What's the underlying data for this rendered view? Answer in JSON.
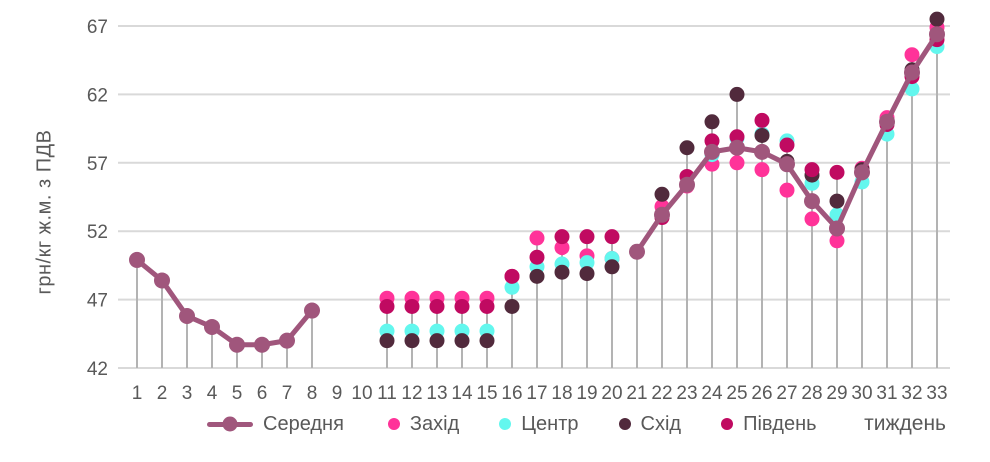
{
  "colors": {
    "grid": "#d9d9d9",
    "dropline": "#b3b3b3",
    "axis_text": "#595959",
    "background": "#ffffff"
  },
  "chart_data": {
    "type": "scatter",
    "title": "",
    "ylabel": "грн/кг ж.м. з ПДВ",
    "xlabel": "тиждень",
    "grid": true,
    "legend_position": "bottom",
    "ylim": [
      42,
      67
    ],
    "y_ticks": [
      42,
      47,
      52,
      57,
      62,
      67
    ],
    "x": [
      1,
      2,
      3,
      4,
      5,
      6,
      7,
      8,
      9,
      10,
      11,
      12,
      13,
      14,
      15,
      16,
      17,
      18,
      19,
      20,
      21,
      22,
      23,
      24,
      25,
      26,
      27,
      28,
      29,
      30,
      31,
      32,
      33
    ],
    "series": [
      {
        "name": "Середня",
        "type": "line",
        "color": "#a0567c",
        "values": [
          49.9,
          48.4,
          45.8,
          45.0,
          43.7,
          43.7,
          44.0,
          46.2,
          null,
          null,
          null,
          null,
          null,
          null,
          null,
          null,
          null,
          null,
          null,
          null,
          50.5,
          53.2,
          55.4,
          57.8,
          58.1,
          57.8,
          56.9,
          54.2,
          52.2,
          56.3,
          60.0,
          63.6,
          66.4
        ]
      },
      {
        "name": "Захід",
        "type": "scatter",
        "color": "#ff3399",
        "values": [
          null,
          null,
          null,
          null,
          null,
          null,
          null,
          null,
          null,
          null,
          47.1,
          47.1,
          47.1,
          47.1,
          47.1,
          48.7,
          51.5,
          50.8,
          50.2,
          50.0,
          null,
          53.8,
          55.3,
          56.9,
          57.0,
          56.5,
          55.0,
          52.9,
          51.3,
          56.6,
          60.3,
          64.9,
          66.9
        ]
      },
      {
        "name": "Центр",
        "type": "scatter",
        "color": "#63f7ee",
        "values": [
          null,
          null,
          null,
          null,
          null,
          null,
          null,
          null,
          null,
          null,
          44.7,
          44.7,
          44.7,
          44.7,
          44.7,
          47.9,
          49.4,
          49.6,
          49.7,
          50.0,
          null,
          null,
          55.4,
          57.6,
          58.8,
          59.1,
          58.6,
          55.5,
          53.2,
          55.6,
          59.1,
          62.4,
          65.5
        ]
      },
      {
        "name": "Схід",
        "type": "scatter",
        "color": "#512a3c",
        "values": [
          null,
          null,
          null,
          null,
          null,
          null,
          null,
          null,
          null,
          null,
          44.0,
          44.0,
          44.0,
          44.0,
          44.0,
          46.5,
          48.7,
          49.0,
          48.9,
          49.4,
          null,
          54.7,
          58.1,
          60.0,
          62.0,
          59.0,
          57.1,
          56.1,
          54.2,
          56.5,
          60.0,
          63.8,
          67.5
        ]
      },
      {
        "name": "Південь",
        "type": "scatter",
        "color": "#c00a61",
        "values": [
          null,
          null,
          null,
          null,
          null,
          null,
          null,
          null,
          null,
          null,
          46.5,
          46.5,
          46.5,
          46.5,
          46.5,
          48.7,
          50.1,
          51.6,
          51.6,
          51.6,
          null,
          53.0,
          56.0,
          58.6,
          58.9,
          60.1,
          58.3,
          56.5,
          56.3,
          56.3,
          59.8,
          63.3,
          66.0
        ]
      }
    ]
  }
}
